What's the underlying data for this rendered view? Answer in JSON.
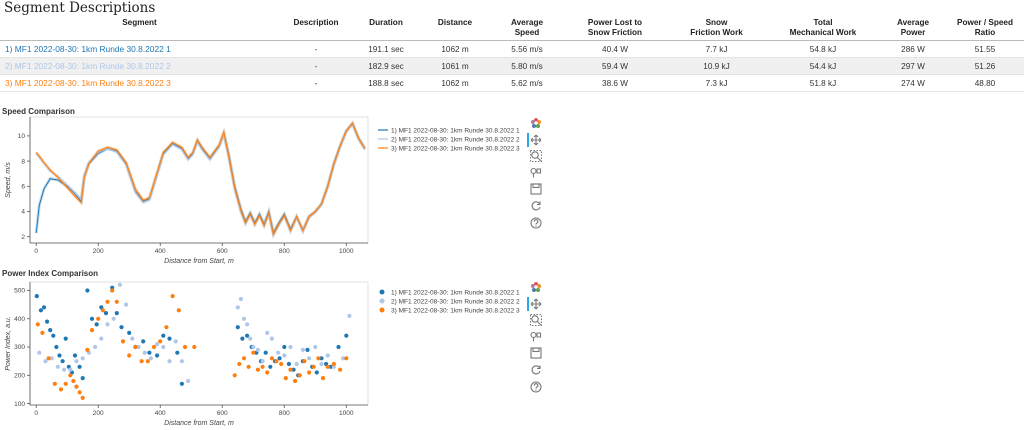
{
  "page_title": "Segment Descriptions",
  "table": {
    "headers": [
      "Segment",
      "Description",
      "Duration",
      "Distance",
      "Average\nSpeed",
      "Power Lost to\nSnow Friction",
      "Snow\nFriction Work",
      "Total\nMechanical Work",
      "Average\nPower",
      "Power / Speed\nRatio"
    ],
    "rows": [
      {
        "segment": "1) MF1 2022-08-30: 1km Runde 30.8.2022 1",
        "color": "#1f77b4",
        "description": "-",
        "duration": "191.1 sec",
        "distance": "1062 m",
        "avg_speed": "5.56 m/s",
        "power_lost": "40.4 W",
        "friction_work": "7.7 kJ",
        "total_work": "54.8 kJ",
        "avg_power": "286 W",
        "ratio": "51.55"
      },
      {
        "segment": "2) MF1 2022-08-30: 1km Runde 30.8.2022 2",
        "color": "#aec7e8",
        "description": "-",
        "duration": "182.9 sec",
        "distance": "1061 m",
        "avg_speed": "5.80 m/s",
        "power_lost": "59.4 W",
        "friction_work": "10.9 kJ",
        "total_work": "54.4 kJ",
        "avg_power": "297 W",
        "ratio": "51.26"
      },
      {
        "segment": "3) MF1 2022-08-30: 1km Runde 30.8.2022 3",
        "color": "#ff7f0e",
        "description": "-",
        "duration": "188.8 sec",
        "distance": "1062 m",
        "avg_speed": "5.62 m/s",
        "power_lost": "38.6 W",
        "friction_work": "7.3 kJ",
        "total_work": "51.8 kJ",
        "avg_power": "274 W",
        "ratio": "48.80"
      }
    ]
  },
  "toolbar_icons": [
    "bokeh-logo-icon",
    "pan-icon",
    "zoom-icon",
    "wheel-zoom-icon",
    "save-icon",
    "reset-icon",
    "help-icon"
  ],
  "chart_data": [
    {
      "type": "line",
      "title": "Speed Comparison",
      "xlabel": "Distance from Start, m",
      "ylabel": "Speed, m/s",
      "xlim": [
        -20,
        1070
      ],
      "ylim": [
        1.5,
        11.5
      ],
      "xticks": [
        0,
        200,
        400,
        600,
        800,
        1000
      ],
      "yticks": [
        2,
        4,
        6,
        8,
        10
      ],
      "legend_position": "right",
      "series": [
        {
          "name": "1) MF1 2022-08-30: 1km Runde 30.8.2022 1",
          "color": "#1f77b4",
          "x": [
            0,
            10,
            25,
            45,
            70,
            100,
            125,
            145,
            155,
            170,
            200,
            230,
            260,
            290,
            320,
            345,
            365,
            385,
            410,
            440,
            470,
            490,
            505,
            520,
            535,
            560,
            590,
            605,
            620,
            640,
            660,
            675,
            690,
            705,
            720,
            735,
            750,
            765,
            780,
            800,
            820,
            840,
            860,
            880,
            900,
            920,
            940,
            960,
            980,
            1000,
            1020,
            1040,
            1060
          ],
          "y": [
            2.3,
            4.5,
            5.8,
            6.6,
            6.5,
            6.0,
            5.4,
            4.8,
            6.8,
            7.8,
            8.6,
            9.0,
            8.8,
            7.8,
            5.6,
            4.8,
            5.0,
            6.6,
            8.6,
            9.4,
            9.0,
            8.2,
            8.6,
            9.6,
            9.0,
            8.2,
            9.2,
            10.2,
            8.6,
            6.0,
            4.2,
            3.2,
            3.9,
            3.1,
            3.8,
            3.0,
            4.0,
            2.3,
            3.0,
            3.8,
            2.6,
            3.6,
            2.5,
            3.6,
            4.0,
            4.6,
            6.0,
            7.8,
            9.2,
            10.4,
            11.0,
            9.8,
            9.0
          ]
        },
        {
          "name": "2) MF1 2022-08-30: 1km Runde 30.8.2022 2",
          "color": "#aec7e8",
          "x": [
            0,
            10,
            25,
            45,
            70,
            100,
            125,
            145,
            155,
            170,
            200,
            230,
            260,
            290,
            320,
            345,
            365,
            385,
            410,
            440,
            470,
            490,
            505,
            520,
            535,
            560,
            590,
            605,
            620,
            640,
            660,
            675,
            690,
            705,
            720,
            735,
            750,
            765,
            780,
            800,
            820,
            840,
            860,
            880,
            900,
            920,
            940,
            960,
            980,
            1000,
            1020,
            1040,
            1060
          ],
          "y": [
            8.6,
            8.3,
            7.8,
            7.2,
            6.8,
            6.1,
            5.5,
            5.0,
            6.9,
            7.9,
            8.7,
            9.0,
            8.7,
            7.7,
            5.5,
            4.7,
            4.9,
            6.5,
            8.5,
            9.3,
            8.9,
            8.1,
            8.5,
            9.5,
            8.9,
            8.1,
            9.1,
            10.1,
            8.4,
            5.7,
            3.9,
            3.0,
            3.7,
            2.9,
            3.6,
            2.8,
            3.8,
            2.1,
            2.8,
            3.6,
            2.4,
            3.5,
            2.4,
            3.5,
            3.9,
            4.5,
            5.9,
            7.7,
            9.1,
            10.3,
            10.9,
            9.7,
            8.9
          ]
        },
        {
          "name": "3) MF1 2022-08-30: 1km Runde 30.8.2022 3",
          "color": "#ff7f0e",
          "x": [
            0,
            10,
            25,
            45,
            70,
            100,
            125,
            145,
            155,
            170,
            200,
            230,
            260,
            290,
            320,
            345,
            365,
            385,
            410,
            440,
            470,
            490,
            505,
            520,
            535,
            560,
            590,
            605,
            620,
            640,
            660,
            675,
            690,
            705,
            720,
            735,
            750,
            765,
            780,
            800,
            820,
            840,
            860,
            880,
            900,
            920,
            940,
            960,
            980,
            1000,
            1020,
            1040,
            1060
          ],
          "y": [
            8.7,
            8.4,
            7.9,
            7.3,
            6.7,
            5.9,
            5.2,
            4.7,
            6.7,
            7.8,
            8.8,
            9.1,
            8.9,
            7.9,
            5.8,
            4.9,
            5.1,
            6.7,
            8.7,
            9.5,
            9.1,
            8.3,
            8.7,
            9.7,
            9.1,
            8.3,
            9.3,
            10.3,
            8.5,
            5.9,
            4.1,
            3.1,
            3.8,
            3.0,
            3.7,
            2.9,
            3.9,
            2.2,
            2.9,
            3.7,
            2.5,
            3.6,
            2.5,
            3.6,
            4.0,
            4.6,
            6.0,
            7.8,
            9.2,
            10.4,
            11.0,
            9.8,
            9.0
          ]
        }
      ]
    },
    {
      "type": "scatter",
      "title": "Power Index Comparison",
      "xlabel": "Distance from Start, m",
      "ylabel": "Power Index, a.u.",
      "xlim": [
        -20,
        1070
      ],
      "ylim": [
        95,
        530
      ],
      "xticks": [
        0,
        200,
        400,
        600,
        800,
        1000
      ],
      "yticks": [
        100,
        200,
        300,
        400,
        500
      ],
      "legend_position": "right",
      "series": [
        {
          "name": "1) MF1 2022-08-30: 1km Runde 30.8.2022 1",
          "color": "#1f77b4",
          "x": [
            2,
            15,
            25,
            35,
            45,
            55,
            65,
            75,
            85,
            95,
            105,
            115,
            125,
            140,
            150,
            165,
            180,
            195,
            210,
            225,
            245,
            260,
            275,
            300,
            320,
            345,
            365,
            390,
            410,
            430,
            455,
            470,
            650,
            665,
            680,
            695,
            710,
            725,
            740,
            755,
            770,
            785,
            800,
            815,
            830,
            845,
            860,
            875,
            890,
            905,
            920,
            935,
            950,
            975,
            1000
          ],
          "y": [
            480,
            430,
            440,
            390,
            360,
            340,
            300,
            270,
            250,
            330,
            230,
            210,
            270,
            230,
            190,
            500,
            400,
            380,
            440,
            420,
            510,
            420,
            370,
            350,
            300,
            320,
            280,
            270,
            340,
            330,
            280,
            170,
            370,
            330,
            340,
            300,
            280,
            250,
            280,
            230,
            250,
            260,
            300,
            240,
            220,
            200,
            250,
            290,
            230,
            210,
            260,
            240,
            230,
            300,
            340
          ]
        },
        {
          "name": "2) MF1 2022-08-30: 1km Runde 30.8.2022 2",
          "color": "#aec7e8",
          "x": [
            10,
            30,
            50,
            70,
            90,
            110,
            130,
            150,
            170,
            190,
            210,
            230,
            250,
            270,
            290,
            310,
            330,
            350,
            370,
            390,
            410,
            430,
            450,
            470,
            490,
            650,
            660,
            670,
            680,
            690,
            700,
            715,
            730,
            745,
            760,
            780,
            800,
            820,
            840,
            860,
            880,
            900,
            920,
            940,
            960,
            990,
            1010
          ],
          "y": [
            280,
            250,
            260,
            230,
            220,
            220,
            250,
            260,
            280,
            300,
            330,
            380,
            400,
            520,
            450,
            330,
            300,
            280,
            260,
            310,
            300,
            250,
            320,
            250,
            180,
            440,
            470,
            400,
            380,
            330,
            300,
            290,
            250,
            350,
            330,
            280,
            270,
            300,
            240,
            290,
            260,
            300,
            240,
            270,
            230,
            260,
            410
          ]
        },
        {
          "name": "3) MF1 2022-08-30: 1km Runde 30.8.2022 3",
          "color": "#ff7f0e",
          "x": [
            5,
            20,
            40,
            60,
            80,
            95,
            110,
            120,
            130,
            140,
            150,
            165,
            180,
            200,
            215,
            230,
            245,
            260,
            280,
            300,
            320,
            340,
            360,
            380,
            400,
            420,
            440,
            460,
            480,
            510,
            640,
            655,
            670,
            685,
            700,
            715,
            730,
            745,
            760,
            775,
            790,
            805,
            820,
            835,
            850,
            865,
            880,
            895,
            910,
            925,
            940,
            960,
            980,
            1000
          ],
          "y": [
            380,
            350,
            260,
            170,
            150,
            170,
            200,
            180,
            160,
            140,
            120,
            290,
            360,
            400,
            430,
            460,
            500,
            460,
            320,
            270,
            300,
            250,
            250,
            300,
            320,
            370,
            480,
            430,
            300,
            300,
            200,
            240,
            260,
            230,
            280,
            220,
            230,
            210,
            260,
            250,
            240,
            190,
            220,
            180,
            200,
            250,
            210,
            230,
            260,
            190,
            230,
            240,
            220,
            260
          ]
        }
      ]
    }
  ]
}
